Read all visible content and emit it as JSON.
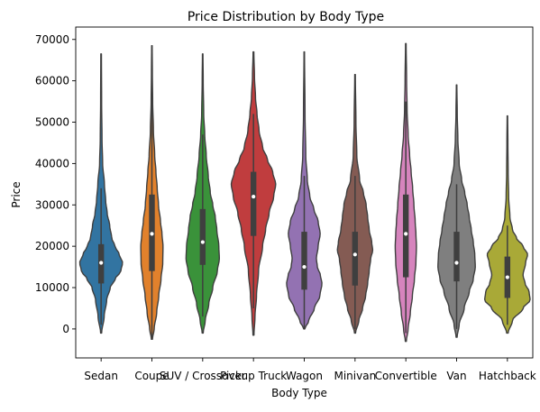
{
  "chart_data": {
    "type": "violin",
    "title": "Price Distribution by Body Type",
    "xlabel": "Body Type",
    "ylabel": "Price",
    "ylim": [
      -7000,
      73000
    ],
    "yticks": [
      0,
      10000,
      20000,
      30000,
      40000,
      50000,
      60000,
      70000
    ],
    "ytick_labels": [
      "0",
      "10000",
      "20000",
      "30000",
      "40000",
      "50000",
      "60000",
      "70000"
    ],
    "grid": false,
    "legend": false,
    "categories": [
      "Sedan",
      "Coupe",
      "SUV / Crossover",
      "Pickup Truck",
      "Wagon",
      "Minivan",
      "Convertible",
      "Van",
      "Hatchback"
    ],
    "series": [
      {
        "category": "Sedan",
        "color": "#3274a1",
        "min": -1000,
        "max": 66500,
        "q1": 11000,
        "median": 16000,
        "q3": 20500,
        "whisker_low": 1000,
        "whisker_high": 34000,
        "density": [
          [
            -1000,
            0.02
          ],
          [
            3000,
            0.12
          ],
          [
            7000,
            0.22
          ],
          [
            10000,
            0.36
          ],
          [
            12000,
            0.55
          ],
          [
            14000,
            0.78
          ],
          [
            16000,
            0.85
          ],
          [
            18000,
            0.72
          ],
          [
            20000,
            0.55
          ],
          [
            22000,
            0.42
          ],
          [
            25000,
            0.34
          ],
          [
            28000,
            0.24
          ],
          [
            31000,
            0.18
          ],
          [
            35000,
            0.13
          ],
          [
            40000,
            0.06
          ],
          [
            46000,
            0.035
          ],
          [
            55000,
            0.02
          ],
          [
            66500,
            0.012
          ]
        ]
      },
      {
        "category": "Coupe",
        "color": "#e1812c",
        "min": -2500,
        "max": 68500,
        "q1": 14000,
        "median": 23000,
        "q3": 32500,
        "whisker_low": -2000,
        "whisker_high": 59000,
        "density": [
          [
            -2500,
            0.02
          ],
          [
            0,
            0.09
          ],
          [
            4000,
            0.19
          ],
          [
            8000,
            0.27
          ],
          [
            12000,
            0.36
          ],
          [
            16000,
            0.43
          ],
          [
            20000,
            0.44
          ],
          [
            23000,
            0.4
          ],
          [
            26000,
            0.34
          ],
          [
            30000,
            0.26
          ],
          [
            34000,
            0.21
          ],
          [
            38000,
            0.16
          ],
          [
            42000,
            0.11
          ],
          [
            48000,
            0.06
          ],
          [
            55000,
            0.03
          ],
          [
            62000,
            0.018
          ],
          [
            68500,
            0.01
          ]
        ]
      },
      {
        "category": "SUV / Crossover",
        "color": "#3a923a",
        "min": -1000,
        "max": 66500,
        "q1": 15500,
        "median": 21000,
        "q3": 29000,
        "whisker_low": 3000,
        "whisker_high": 47000,
        "density": [
          [
            -1000,
            0.02
          ],
          [
            2000,
            0.1
          ],
          [
            6000,
            0.24
          ],
          [
            10000,
            0.4
          ],
          [
            14000,
            0.58
          ],
          [
            17000,
            0.66
          ],
          [
            20000,
            0.64
          ],
          [
            24000,
            0.56
          ],
          [
            27000,
            0.5
          ],
          [
            30000,
            0.4
          ],
          [
            33000,
            0.3
          ],
          [
            37000,
            0.22
          ],
          [
            42000,
            0.14
          ],
          [
            47000,
            0.08
          ],
          [
            52000,
            0.04
          ],
          [
            60000,
            0.02
          ],
          [
            66500,
            0.01
          ]
        ]
      },
      {
        "category": "Pickup Truck",
        "color": "#c03d3e",
        "min": -1500,
        "max": 67000,
        "q1": 22500,
        "median": 32000,
        "q3": 38000,
        "whisker_low": 5000,
        "whisker_high": 52000,
        "density": [
          [
            -1500,
            0.02
          ],
          [
            3000,
            0.06
          ],
          [
            8000,
            0.12
          ],
          [
            14000,
            0.2
          ],
          [
            20000,
            0.36
          ],
          [
            24000,
            0.48
          ],
          [
            28000,
            0.62
          ],
          [
            32000,
            0.8
          ],
          [
            35000,
            0.88
          ],
          [
            38000,
            0.76
          ],
          [
            41000,
            0.55
          ],
          [
            44000,
            0.36
          ],
          [
            48000,
            0.22
          ],
          [
            52000,
            0.14
          ],
          [
            56000,
            0.08
          ],
          [
            61000,
            0.04
          ],
          [
            67000,
            0.015
          ]
        ]
      },
      {
        "category": "Wagon",
        "color": "#9372b2",
        "min": 0,
        "max": 67000,
        "q1": 9500,
        "median": 15000,
        "q3": 23500,
        "whisker_low": 0,
        "whisker_high": 37000,
        "density": [
          [
            0,
            0.02
          ],
          [
            2000,
            0.18
          ],
          [
            5000,
            0.4
          ],
          [
            8000,
            0.62
          ],
          [
            11000,
            0.7
          ],
          [
            13000,
            0.64
          ],
          [
            15000,
            0.52
          ],
          [
            17000,
            0.48
          ],
          [
            20000,
            0.55
          ],
          [
            23000,
            0.63
          ],
          [
            26000,
            0.55
          ],
          [
            29000,
            0.38
          ],
          [
            32000,
            0.22
          ],
          [
            36000,
            0.12
          ],
          [
            42000,
            0.06
          ],
          [
            52000,
            0.03
          ],
          [
            67000,
            0.01
          ]
        ]
      },
      {
        "category": "Minivan",
        "color": "#845b53",
        "min": -1000,
        "max": 61500,
        "q1": 10500,
        "median": 18000,
        "q3": 23500,
        "whisker_low": 0,
        "whisker_high": 37000,
        "density": [
          [
            -1000,
            0.02
          ],
          [
            2000,
            0.15
          ],
          [
            5000,
            0.3
          ],
          [
            8000,
            0.42
          ],
          [
            11000,
            0.5
          ],
          [
            14000,
            0.56
          ],
          [
            17000,
            0.62
          ],
          [
            19000,
            0.7
          ],
          [
            21000,
            0.66
          ],
          [
            24000,
            0.56
          ],
          [
            27000,
            0.5
          ],
          [
            30000,
            0.44
          ],
          [
            33000,
            0.33
          ],
          [
            36000,
            0.18
          ],
          [
            42000,
            0.07
          ],
          [
            50000,
            0.035
          ],
          [
            61500,
            0.012
          ]
        ]
      },
      {
        "category": "Convertible",
        "color": "#d684bd",
        "min": -3000,
        "max": 69000,
        "q1": 12500,
        "median": 23000,
        "q3": 32500,
        "whisker_low": -1000,
        "whisker_high": 55000,
        "density": [
          [
            -3000,
            0.02
          ],
          [
            0,
            0.09
          ],
          [
            4000,
            0.18
          ],
          [
            8000,
            0.26
          ],
          [
            12000,
            0.34
          ],
          [
            16000,
            0.4
          ],
          [
            20000,
            0.42
          ],
          [
            23000,
            0.4
          ],
          [
            26000,
            0.37
          ],
          [
            30000,
            0.32
          ],
          [
            34000,
            0.27
          ],
          [
            38000,
            0.21
          ],
          [
            42000,
            0.15
          ],
          [
            47000,
            0.09
          ],
          [
            53000,
            0.05
          ],
          [
            60000,
            0.03
          ],
          [
            69000,
            0.012
          ]
        ]
      },
      {
        "category": "Van",
        "color": "#7f7f7f",
        "min": -2000,
        "max": 59000,
        "q1": 11500,
        "median": 16000,
        "q3": 23500,
        "whisker_low": 0,
        "whisker_high": 35000,
        "density": [
          [
            -2000,
            0.02
          ],
          [
            1000,
            0.1
          ],
          [
            5000,
            0.3
          ],
          [
            9000,
            0.5
          ],
          [
            12000,
            0.66
          ],
          [
            15000,
            0.74
          ],
          [
            18000,
            0.72
          ],
          [
            21000,
            0.66
          ],
          [
            24000,
            0.58
          ],
          [
            27000,
            0.5
          ],
          [
            30000,
            0.42
          ],
          [
            33000,
            0.32
          ],
          [
            36000,
            0.2
          ],
          [
            40000,
            0.1
          ],
          [
            46000,
            0.05
          ],
          [
            52000,
            0.025
          ],
          [
            59000,
            0.01
          ]
        ]
      },
      {
        "category": "Hatchback",
        "color": "#a9a937",
        "min": -1000,
        "max": 51500,
        "q1": 7500,
        "median": 12500,
        "q3": 17500,
        "whisker_low": 1000,
        "whisker_high": 25000,
        "density": [
          [
            -1000,
            0.03
          ],
          [
            2000,
            0.2
          ],
          [
            5000,
            0.62
          ],
          [
            7000,
            0.9
          ],
          [
            9000,
            0.86
          ],
          [
            11000,
            0.7
          ],
          [
            13000,
            0.62
          ],
          [
            16000,
            0.72
          ],
          [
            18000,
            0.8
          ],
          [
            20000,
            0.62
          ],
          [
            22000,
            0.36
          ],
          [
            24000,
            0.2
          ],
          [
            27000,
            0.1
          ],
          [
            32000,
            0.05
          ],
          [
            38000,
            0.03
          ],
          [
            45000,
            0.02
          ],
          [
            51500,
            0.01
          ]
        ]
      }
    ]
  }
}
